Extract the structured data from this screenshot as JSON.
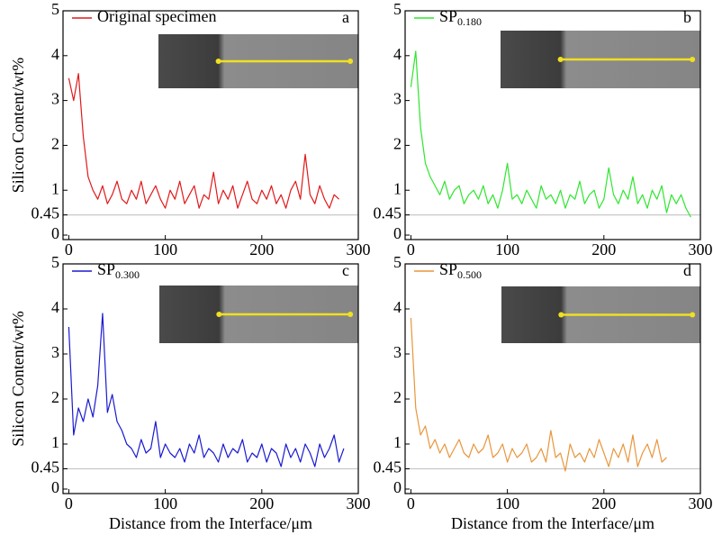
{
  "chart_data": [
    {
      "type": "line",
      "panel_label": "a",
      "ylabel": "Silicon Content/wt%",
      "xlim": [
        -6,
        300
      ],
      "ylim": [
        -0.1,
        5
      ],
      "xticks": [
        0,
        100,
        200,
        300
      ],
      "yticks": [
        0,
        0.45,
        1,
        2,
        3,
        4,
        5
      ],
      "hline": 0.45,
      "x": [
        0,
        5,
        10,
        15,
        20,
        25,
        30,
        35,
        40,
        45,
        50,
        55,
        60,
        65,
        70,
        75,
        80,
        85,
        90,
        95,
        100,
        105,
        110,
        115,
        120,
        125,
        130,
        135,
        140,
        145,
        150,
        155,
        160,
        165,
        170,
        175,
        180,
        185,
        190,
        195,
        200,
        205,
        210,
        215,
        220,
        225,
        230,
        235,
        240,
        245,
        250,
        255,
        260,
        265,
        270,
        275,
        280
      ],
      "series": [
        {
          "name": "Original specimen",
          "color": "#e0191b",
          "values": [
            3.5,
            3.0,
            3.6,
            2.2,
            1.3,
            1.0,
            0.8,
            1.1,
            0.7,
            0.9,
            1.2,
            0.8,
            0.7,
            1.0,
            0.8,
            1.2,
            0.7,
            0.9,
            1.1,
            0.8,
            0.6,
            1.0,
            0.8,
            1.2,
            0.7,
            0.9,
            1.1,
            0.6,
            0.9,
            0.8,
            1.4,
            0.7,
            1.0,
            0.8,
            1.1,
            0.6,
            0.9,
            1.2,
            0.8,
            0.7,
            1.0,
            0.8,
            1.1,
            0.7,
            0.9,
            0.6,
            1.0,
            1.2,
            0.8,
            1.8,
            0.9,
            0.7,
            1.1,
            0.8,
            0.6,
            0.9,
            0.8
          ]
        }
      ]
    },
    {
      "type": "line",
      "panel_label": "b",
      "xlim": [
        -6,
        300
      ],
      "ylim": [
        -0.1,
        5
      ],
      "xticks": [
        0,
        100,
        200,
        300
      ],
      "yticks": [
        0,
        0.45,
        1,
        2,
        3,
        4,
        5
      ],
      "hline": 0.45,
      "x": [
        0,
        5,
        10,
        15,
        20,
        25,
        30,
        35,
        40,
        45,
        50,
        55,
        60,
        65,
        70,
        75,
        80,
        85,
        90,
        95,
        100,
        105,
        110,
        115,
        120,
        125,
        130,
        135,
        140,
        145,
        150,
        155,
        160,
        165,
        170,
        175,
        180,
        185,
        190,
        195,
        200,
        205,
        210,
        215,
        220,
        225,
        230,
        235,
        240,
        245,
        250,
        255,
        260,
        265,
        270,
        275,
        280,
        285,
        290
      ],
      "series": [
        {
          "name": "SP",
          "subscript": "0.180",
          "color": "#2ee62e",
          "values": [
            3.3,
            4.1,
            2.4,
            1.6,
            1.3,
            1.1,
            0.9,
            1.2,
            0.8,
            1.0,
            1.1,
            0.7,
            0.9,
            1.0,
            0.8,
            1.1,
            0.7,
            0.9,
            0.6,
            1.0,
            1.6,
            0.8,
            0.9,
            0.7,
            1.0,
            0.8,
            0.6,
            1.1,
            0.8,
            0.9,
            0.7,
            1.0,
            0.6,
            0.9,
            0.8,
            1.2,
            0.7,
            0.9,
            1.0,
            0.6,
            0.8,
            1.5,
            0.9,
            0.7,
            1.0,
            0.8,
            1.3,
            0.7,
            0.9,
            0.6,
            1.0,
            0.8,
            1.1,
            0.5,
            0.9,
            0.7,
            0.9,
            0.6,
            0.4
          ]
        }
      ]
    },
    {
      "type": "line",
      "panel_label": "c",
      "ylabel": "Silicon Content/wt%",
      "xlabel": "Distance from the Interface/μm",
      "xlim": [
        -6,
        300
      ],
      "ylim": [
        -0.1,
        5
      ],
      "xticks": [
        0,
        100,
        200,
        300
      ],
      "yticks": [
        0,
        0.45,
        1,
        2,
        3,
        4,
        5
      ],
      "hline": 0.45,
      "x": [
        0,
        5,
        10,
        15,
        20,
        25,
        30,
        35,
        40,
        45,
        50,
        55,
        60,
        65,
        70,
        75,
        80,
        85,
        90,
        95,
        100,
        105,
        110,
        115,
        120,
        125,
        130,
        135,
        140,
        145,
        150,
        155,
        160,
        165,
        170,
        175,
        180,
        185,
        190,
        195,
        200,
        205,
        210,
        215,
        220,
        225,
        230,
        235,
        240,
        245,
        250,
        255,
        260,
        265,
        270,
        275,
        280,
        285
      ],
      "series": [
        {
          "name": "SP",
          "subscript": "0.300",
          "color": "#1a1ad0",
          "values": [
            3.6,
            1.2,
            1.8,
            1.5,
            2.0,
            1.6,
            2.3,
            3.9,
            1.7,
            2.1,
            1.5,
            1.3,
            1.0,
            0.9,
            0.7,
            1.1,
            0.8,
            0.9,
            1.5,
            0.7,
            1.0,
            0.8,
            0.7,
            0.9,
            0.6,
            1.0,
            0.8,
            1.2,
            0.7,
            0.9,
            0.8,
            0.6,
            1.0,
            0.7,
            0.9,
            0.8,
            1.1,
            0.6,
            0.8,
            0.7,
            1.0,
            0.6,
            0.9,
            0.8,
            0.5,
            1.0,
            0.7,
            0.9,
            0.6,
            1.0,
            0.8,
            0.5,
            1.0,
            0.7,
            0.9,
            1.2,
            0.6,
            0.9
          ]
        }
      ]
    },
    {
      "type": "line",
      "panel_label": "d",
      "xlabel": "Distance from the Interface/μm",
      "xlim": [
        -6,
        300
      ],
      "ylim": [
        -0.1,
        5
      ],
      "xticks": [
        0,
        100,
        200,
        300
      ],
      "yticks": [
        0,
        0.45,
        1,
        2,
        3,
        4,
        5
      ],
      "hline": 0.45,
      "x": [
        0,
        5,
        10,
        15,
        20,
        25,
        30,
        35,
        40,
        45,
        50,
        55,
        60,
        65,
        70,
        75,
        80,
        85,
        90,
        95,
        100,
        105,
        110,
        115,
        120,
        125,
        130,
        135,
        140,
        145,
        150,
        155,
        160,
        165,
        170,
        175,
        180,
        185,
        190,
        195,
        200,
        205,
        210,
        215,
        220,
        225,
        230,
        235,
        240,
        245,
        250,
        255,
        260,
        265
      ],
      "series": [
        {
          "name": "SP",
          "subscript": "0.500",
          "color": "#e8963c",
          "values": [
            3.8,
            1.8,
            1.2,
            1.4,
            0.9,
            1.1,
            0.8,
            1.0,
            0.7,
            0.9,
            1.1,
            0.8,
            0.7,
            1.0,
            0.8,
            0.9,
            1.2,
            0.7,
            0.8,
            1.0,
            0.6,
            0.9,
            0.7,
            0.8,
            1.0,
            0.6,
            0.7,
            0.9,
            0.6,
            1.3,
            0.7,
            0.8,
            0.4,
            1.0,
            0.7,
            0.8,
            0.6,
            0.9,
            0.7,
            1.1,
            0.8,
            0.5,
            0.9,
            0.7,
            1.0,
            0.6,
            1.2,
            0.5,
            0.8,
            1.0,
            0.7,
            1.1,
            0.6,
            0.7
          ]
        }
      ]
    }
  ]
}
